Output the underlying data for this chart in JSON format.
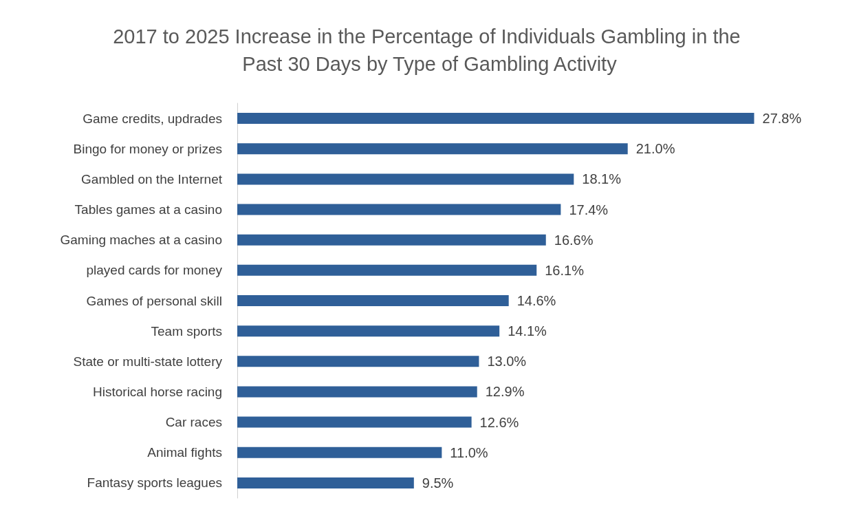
{
  "chart_data": {
    "type": "bar",
    "orientation": "horizontal",
    "title": "2017 to 2025 Increase in the Percentage of Individuals Gambling in the Past 30 Days by Type of Gambling Activity",
    "categories": [
      "Game credits, updrades",
      "Bingo for money or prizes",
      "Gambled on the Internet",
      "Tables games at a casino",
      "Gaming maches at a casino",
      "played cards for money",
      "Games of personal skill",
      "Team sports",
      "State or multi-state lottery",
      "Historical horse racing",
      "Car races",
      "Animal fights",
      "Fantasy sports leagues"
    ],
    "values": [
      27.8,
      21.0,
      18.1,
      17.4,
      16.6,
      16.1,
      14.6,
      14.1,
      13.0,
      12.9,
      12.6,
      11.0,
      9.5
    ],
    "value_labels": [
      "27.8%",
      "21.0%",
      "18.1%",
      "17.4%",
      "16.6%",
      "16.1%",
      "14.6%",
      "14.1%",
      "13.0%",
      "12.9%",
      "12.6%",
      "11.0%",
      "9.5%"
    ],
    "color": "#2f5f98"
  }
}
